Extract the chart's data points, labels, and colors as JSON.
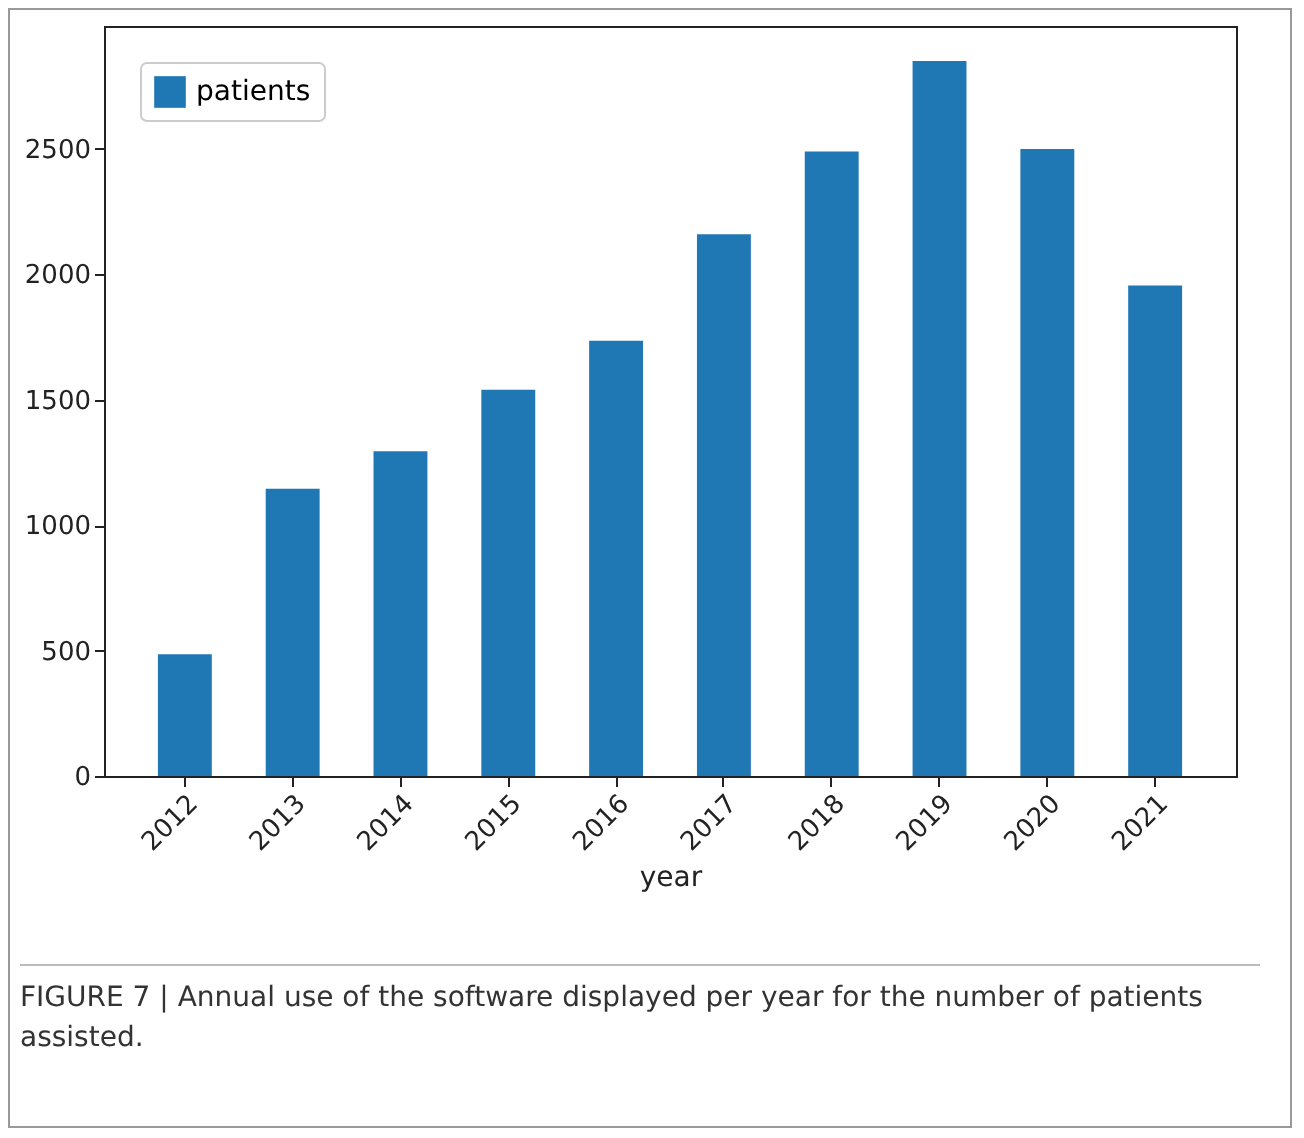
{
  "chart_data": {
    "type": "bar",
    "xlabel": "year",
    "categories": [
      "2012",
      "2013",
      "2014",
      "2015",
      "2016",
      "2017",
      "2018",
      "2019",
      "2020",
      "2021"
    ],
    "series": [
      {
        "name": "patients",
        "color": "#1f77b4",
        "values": [
          485,
          1145,
          1295,
          1540,
          1735,
          2160,
          2490,
          2850,
          2500,
          1955
        ]
      }
    ],
    "ylim": [
      0,
      2990
    ],
    "yticks": [
      0,
      500,
      1000,
      1500,
      2000,
      2500
    ],
    "grid": false,
    "legend": "top left",
    "annotations": [
      "FIGURE 7 | Annual use of the software displayed per year for the number of patients assisted."
    ]
  }
}
